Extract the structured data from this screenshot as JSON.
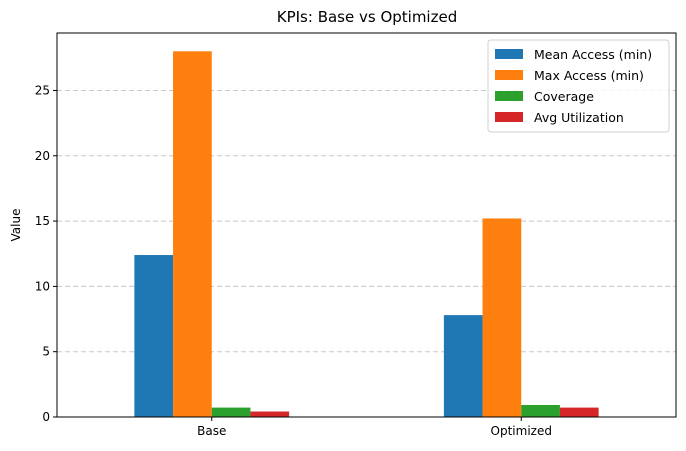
{
  "chart_data": {
    "type": "bar",
    "title": "KPIs: Base vs Optimized",
    "xlabel": "",
    "ylabel": "Value",
    "categories": [
      "Base",
      "Optimized"
    ],
    "series": [
      {
        "name": "Mean Access (min)",
        "color": "#1f77b4",
        "values": [
          12.4,
          7.8
        ]
      },
      {
        "name": "Max Access (min)",
        "color": "#ff7f0e",
        "values": [
          28.0,
          15.2
        ]
      },
      {
        "name": "Coverage",
        "color": "#2ca02c",
        "values": [
          0.72,
          0.92
        ]
      },
      {
        "name": "Avg Utilization",
        "color": "#d62728",
        "values": [
          0.42,
          0.72
        ]
      }
    ],
    "ylim": [
      0,
      29.4
    ],
    "yticks": [
      0,
      5,
      10,
      15,
      20,
      25
    ],
    "grid": "y-dashed",
    "legend_position": "top-right"
  }
}
